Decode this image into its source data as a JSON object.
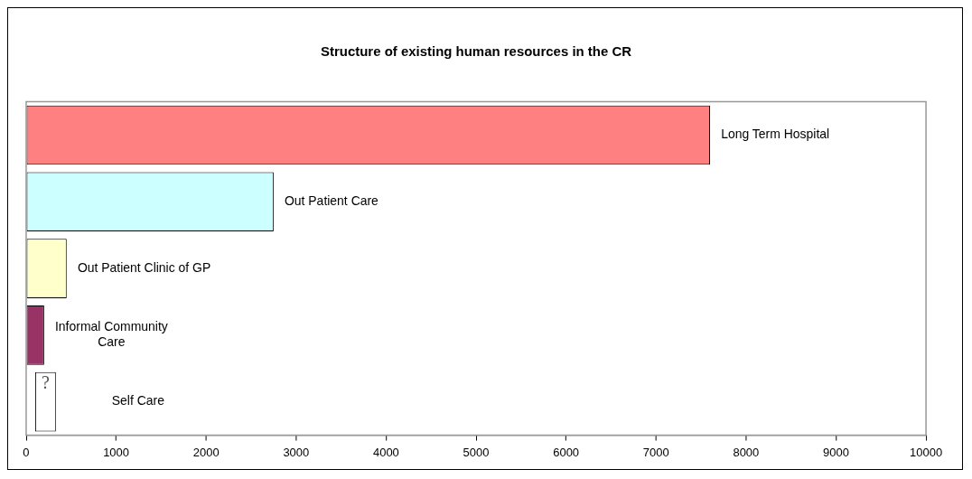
{
  "chart_data": {
    "type": "bar",
    "orientation": "horizontal",
    "title": "Structure of existing human resources in the CR",
    "categories": [
      "Long Term Hospital",
      "Out Patient Care",
      "Out Patient Clinic of GP",
      "Informal Community Care",
      "Self Care"
    ],
    "values": [
      7600,
      2750,
      450,
      200,
      230
    ],
    "base": [
      0,
      0,
      0,
      0,
      100
    ],
    "value_labels": [
      null,
      null,
      null,
      null,
      "?"
    ],
    "colors": [
      "#ff8080",
      "#ccffff",
      "#ffffcc",
      "#993366",
      "#ffffff"
    ],
    "xlim": [
      0,
      10000
    ],
    "xticks": [
      0,
      1000,
      2000,
      3000,
      4000,
      5000,
      6000,
      7000,
      8000,
      9000,
      10000
    ],
    "grid": false,
    "legend": false,
    "tick_labels": "x"
  }
}
